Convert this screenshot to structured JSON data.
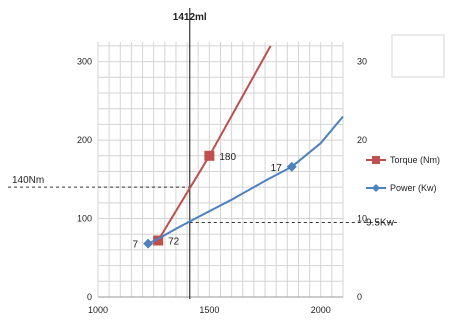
{
  "chart_data": {
    "type": "line",
    "title": "",
    "x": {
      "label": "",
      "range": [
        1000,
        2100
      ],
      "ticks": [
        1000,
        1500,
        2000
      ],
      "tick_labels": [
        "1000",
        "1500",
        "2000"
      ],
      "grid_step": 50
    },
    "y_left": {
      "label": "",
      "range": [
        0,
        325
      ],
      "ticks": [
        0,
        100,
        200,
        300
      ],
      "tick_labels": [
        "0",
        "100",
        "200",
        "300"
      ],
      "grid_step": 20
    },
    "y_right": {
      "label": "",
      "range": [
        0,
        32.5
      ],
      "ticks": [
        0,
        10,
        20,
        30
      ],
      "tick_labels": [
        "0",
        "10",
        "20",
        "30"
      ]
    },
    "grid": true,
    "legend_position": "right",
    "series": [
      {
        "name": "Torque (Nm)",
        "axis": "left",
        "color": "#c0504d",
        "marker": "square",
        "line": [
          [
            1270,
            72
          ],
          [
            1500,
            180
          ],
          [
            1775,
            320
          ]
        ],
        "markers": [
          [
            1270,
            72
          ],
          [
            1500,
            180
          ]
        ],
        "labels": [
          {
            "x": 1270,
            "y": 72,
            "text": "72"
          },
          {
            "x": 1500,
            "y": 180,
            "text": "180"
          }
        ]
      },
      {
        "name": "Power (Kw)",
        "axis": "right",
        "color": "#4f81bd",
        "marker": "diamond",
        "line": [
          [
            1225,
            6.8
          ],
          [
            1270,
            7.4
          ],
          [
            1350,
            8.7
          ],
          [
            1450,
            10.2
          ],
          [
            1600,
            12.4
          ],
          [
            1750,
            14.8
          ],
          [
            1870,
            16.6
          ],
          [
            2000,
            19.6
          ],
          [
            2100,
            23.0
          ]
        ],
        "markers": [
          [
            1225,
            6.8
          ],
          [
            1870,
            16.6
          ]
        ],
        "labels": [
          {
            "x": 1225,
            "y": 6.8,
            "text": "7"
          },
          {
            "x": 1870,
            "y": 16.6,
            "text": "17"
          }
        ]
      }
    ],
    "annotations": {
      "vertical": {
        "x": 1412,
        "text": "1412ml"
      },
      "left_hline": {
        "y": 140,
        "text": "140Nm"
      },
      "right_hline": {
        "y": 9.5,
        "text": "9.5Kw"
      }
    }
  }
}
